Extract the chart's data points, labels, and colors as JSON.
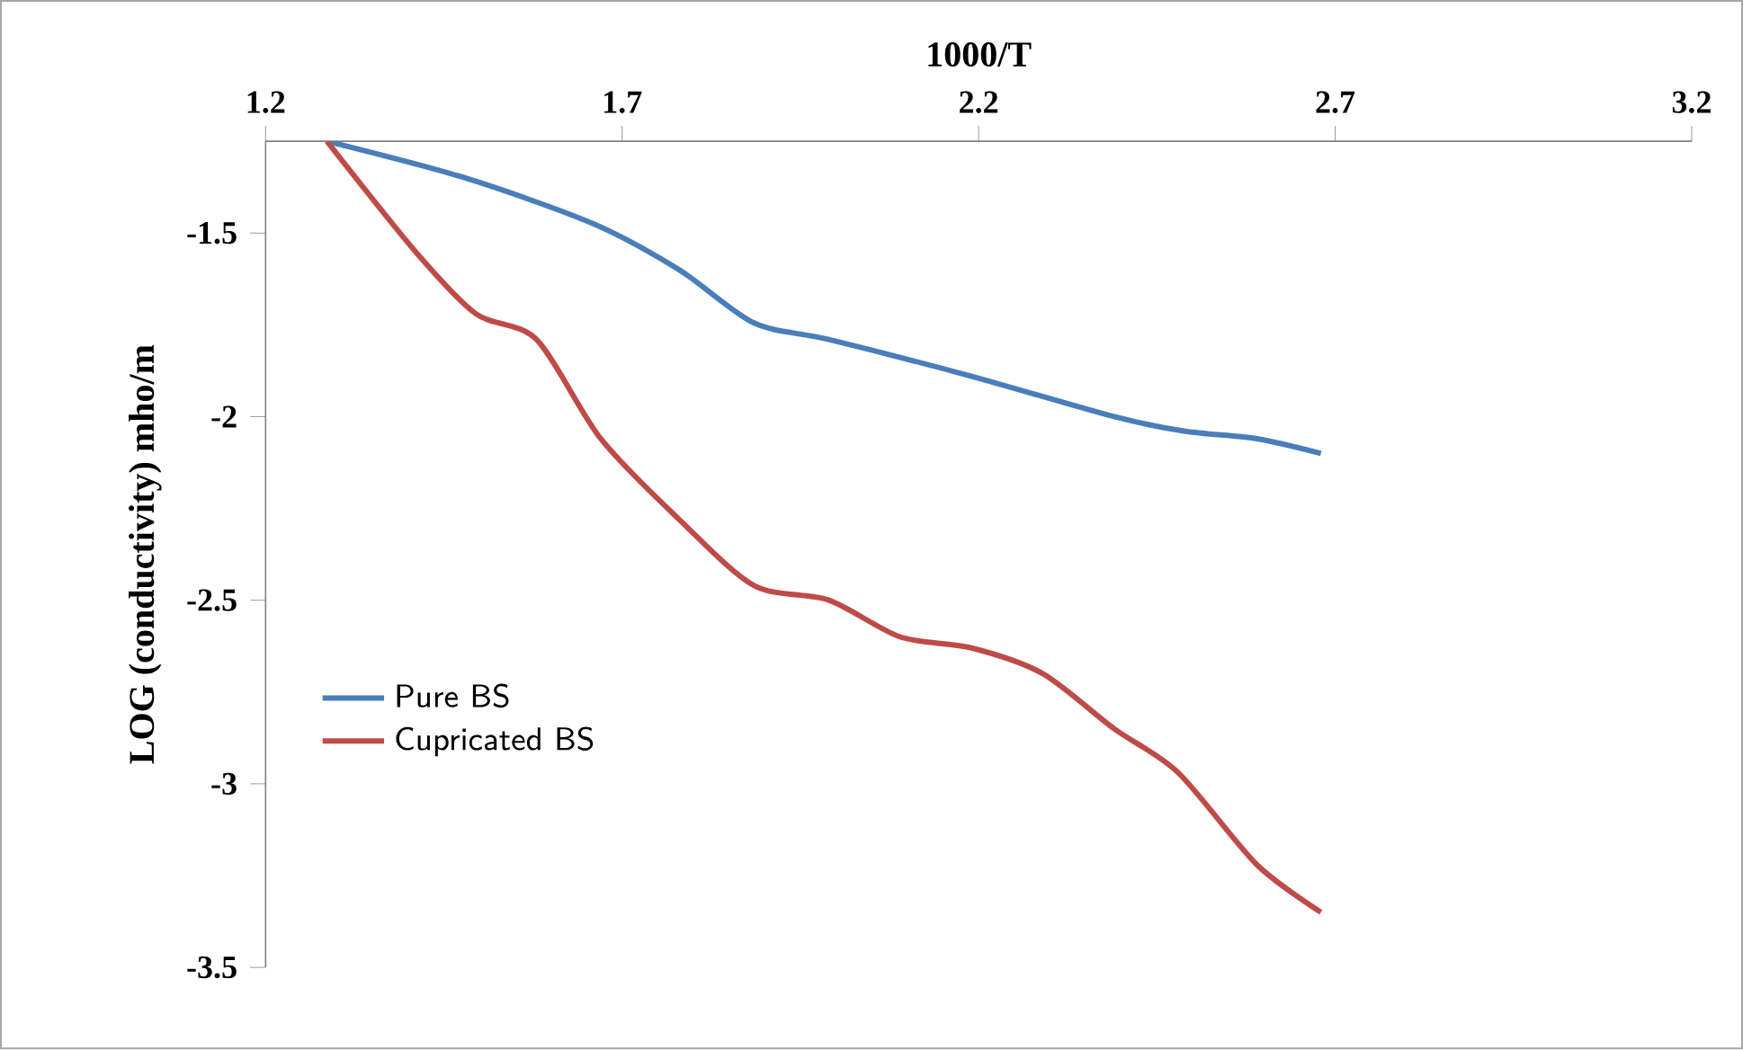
{
  "chart_data": {
    "type": "line",
    "xlabel": "1000/T",
    "ylabel": "LOG (conductivity) mho/m",
    "xlim": [
      1.2,
      3.2
    ],
    "xticks": [
      1.2,
      1.7,
      2.2,
      2.7,
      3.2
    ],
    "ylim": [
      -3.5,
      -1.25
    ],
    "yticks": [
      -3.5,
      -3,
      -2.5,
      -2,
      -1.5
    ],
    "legend": "left",
    "series": [
      {
        "name": "Pure BS",
        "color": "#4a7ebb",
        "x": [
          1.286,
          1.48,
          1.66,
          1.78,
          1.885,
          1.99,
          2.19,
          2.39,
          2.49,
          2.59,
          2.68
        ],
        "values": [
          -1.25,
          -1.35,
          -1.475,
          -1.6,
          -1.745,
          -1.79,
          -1.89,
          -2.0,
          -2.04,
          -2.06,
          -2.1
        ]
      },
      {
        "name": "Cupricated BS",
        "color": "#be4b48",
        "x": [
          1.286,
          1.41,
          1.495,
          1.58,
          1.67,
          1.78,
          1.885,
          1.99,
          2.09,
          2.19,
          2.29,
          2.39,
          2.48,
          2.59,
          2.68
        ],
        "values": [
          -1.25,
          -1.55,
          -1.72,
          -1.79,
          -2.06,
          -2.28,
          -2.46,
          -2.5,
          -2.6,
          -2.63,
          -2.7,
          -2.85,
          -2.97,
          -3.22,
          -3.35
        ]
      }
    ]
  }
}
